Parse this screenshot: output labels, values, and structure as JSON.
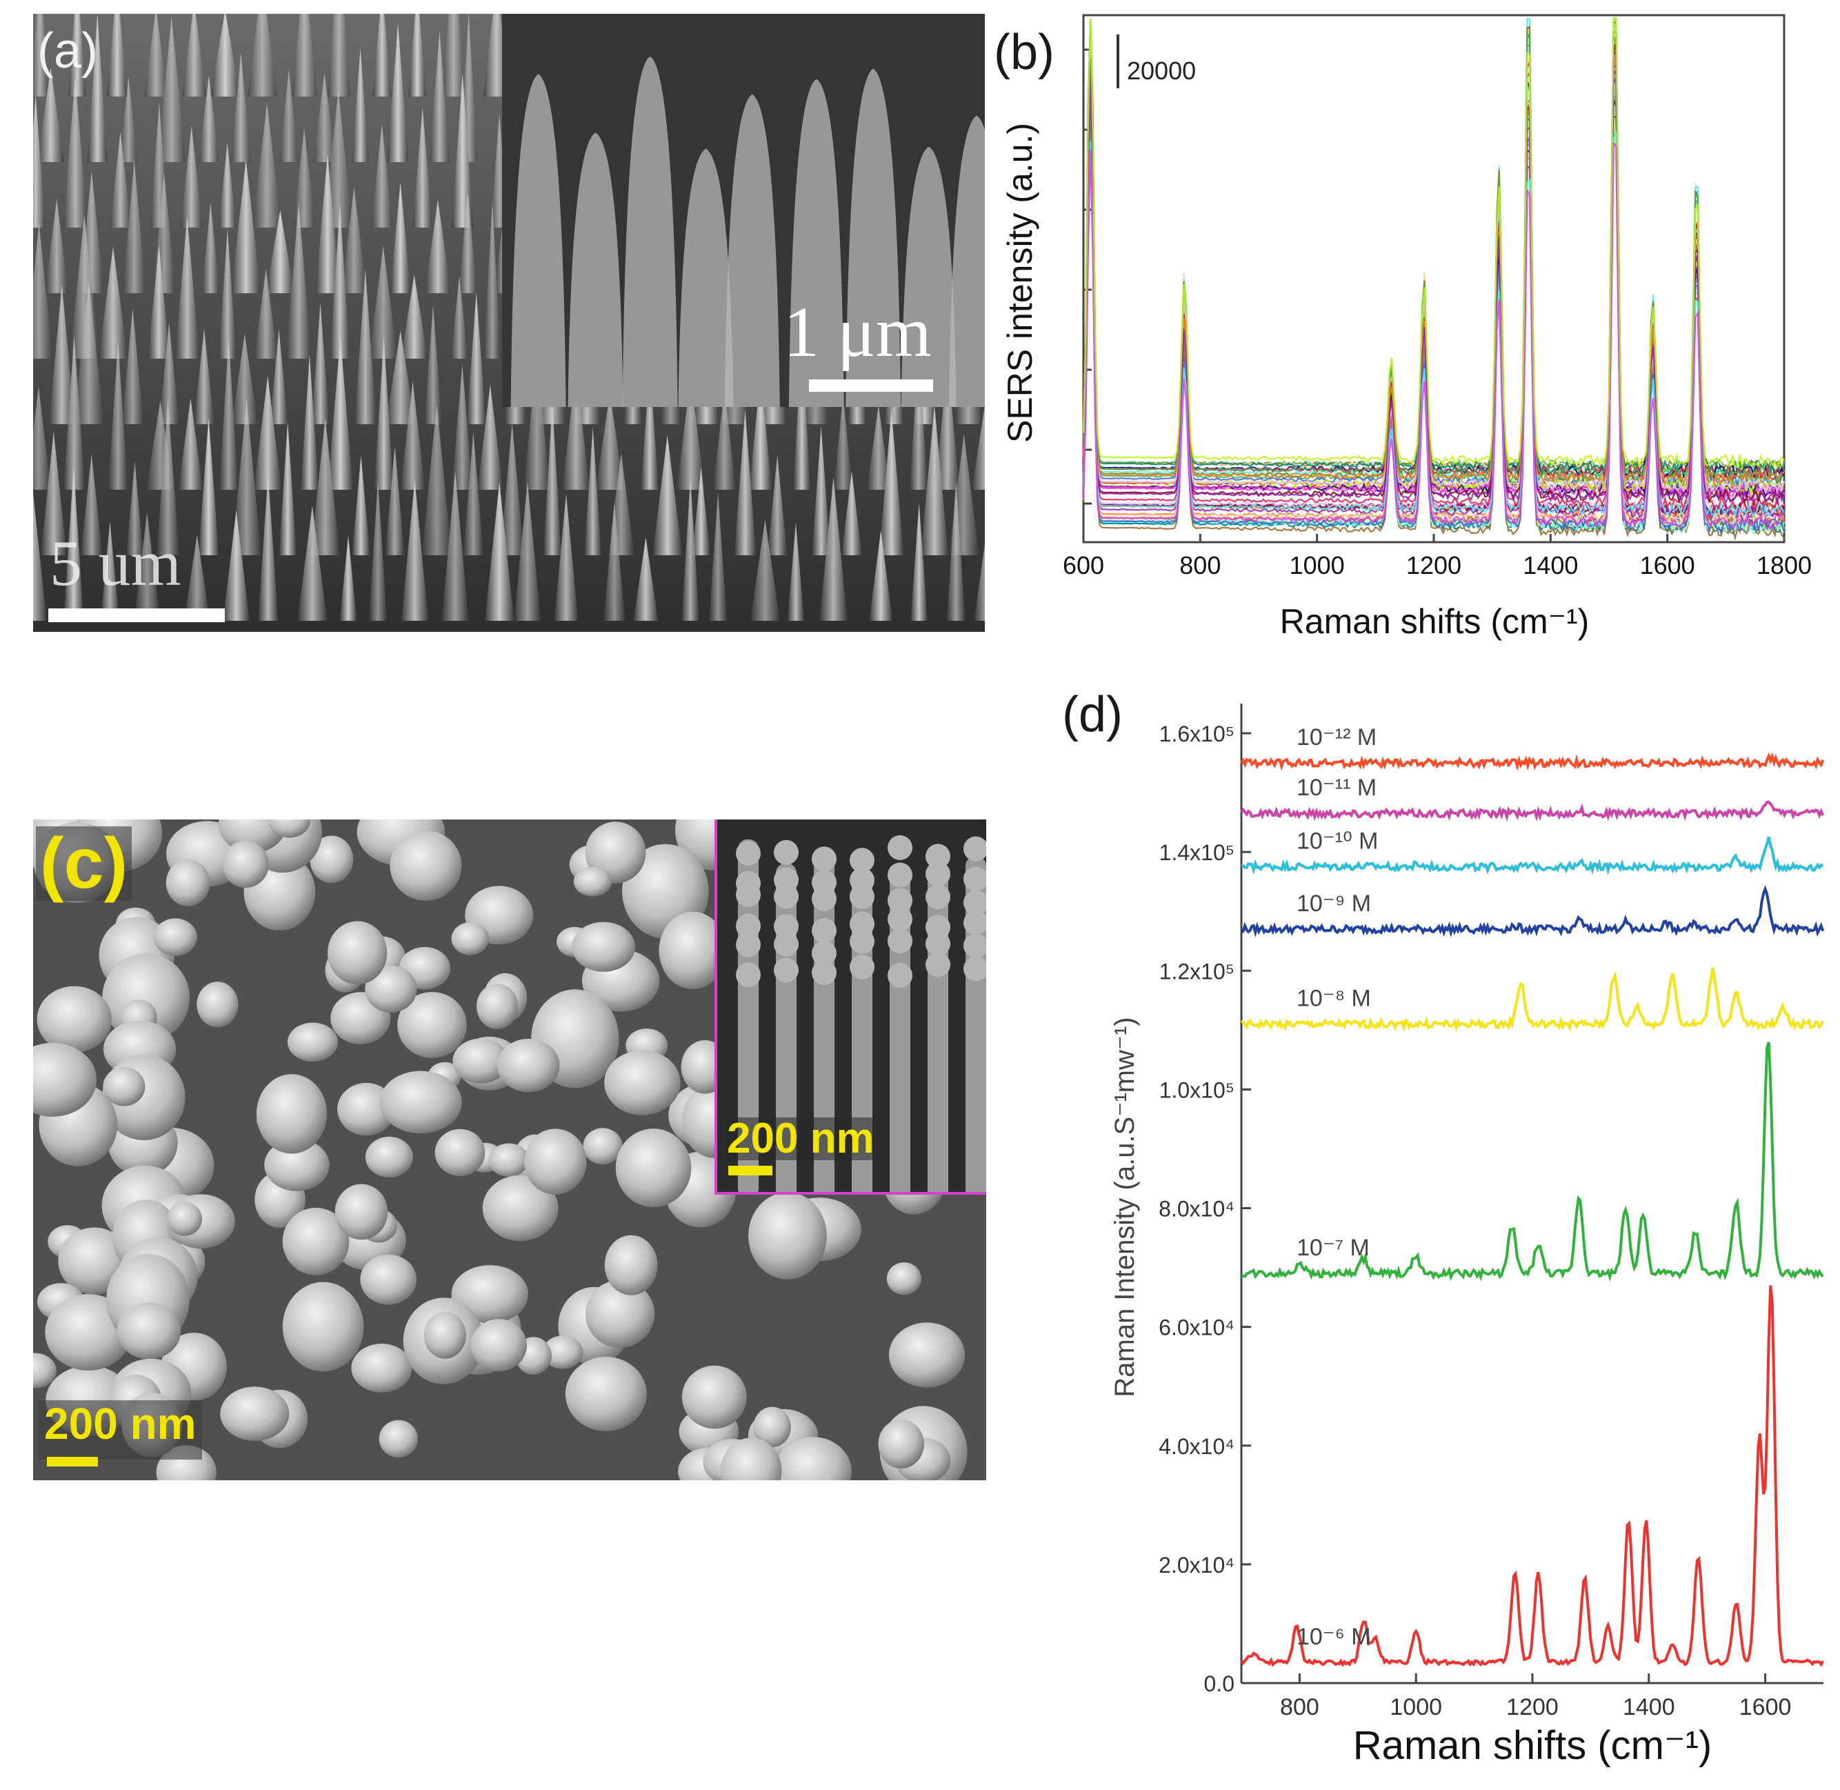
{
  "panels": {
    "a": {
      "letter": "(a)",
      "inset_scale": "1 μm",
      "main_scale": "5 um"
    },
    "b": {
      "letter": "(b)",
      "scale_label": "20000",
      "ylabel": "SERS intensity (a.u.)",
      "xlabel": "Raman shifts (cm⁻¹)",
      "xticks": [
        "600",
        "800",
        "1000",
        "1200",
        "1400",
        "1600",
        "1800"
      ]
    },
    "c": {
      "letter": "(c)",
      "main_scale": "200 nm",
      "inset_scale": "200 nm",
      "accent": "#f2e500",
      "inset_border": "#d63fd0"
    },
    "d": {
      "letter": "(d)",
      "ylabel": "Raman Intensity (a.u.S⁻¹mw⁻¹)",
      "xlabel": "Raman shifts (cm⁻¹)",
      "xticks": [
        "800",
        "1000",
        "1200",
        "1400",
        "1600"
      ],
      "yticks": [
        "0.0",
        "2.0x10⁴",
        "4.0x10⁴",
        "6.0x10⁴",
        "8.0x10⁴",
        "1.0x10⁵",
        "1.2x10⁵",
        "1.4x10⁵",
        "1.6x10⁵"
      ]
    }
  },
  "chart_data": [
    {
      "type": "line",
      "panel": "b",
      "xlabel": "Raman shifts (cm⁻¹)",
      "ylabel": "SERS intensity (a.u.)",
      "xlim": [
        600,
        1800
      ],
      "scale_bar": 20000,
      "y_units": "a.u. (stacked, ~40 spectra overlaid)",
      "peaks_x": [
        612,
        773,
        1127,
        1183,
        1311,
        1362,
        1510,
        1575,
        1650
      ],
      "peak_heights_relative": [
        0.9,
        0.35,
        0.2,
        0.35,
        0.55,
        0.87,
        1.0,
        0.32,
        0.55
      ],
      "series_count": 40,
      "series_colors": [
        "#e6194b",
        "#3cb44b",
        "#4363d8",
        "#f58231",
        "#911eb4",
        "#46f0f0",
        "#f032e6",
        "#bcf60c",
        "#008080",
        "#9a6324",
        "#800000",
        "#808000",
        "#000075",
        "#e6beff",
        "#aaffc3",
        "#ffd8b1"
      ]
    },
    {
      "type": "line",
      "panel": "d",
      "xlabel": "Raman shifts (cm⁻¹)",
      "ylabel": "Raman Intensity (a.u.S⁻¹mw⁻¹)",
      "xlim": [
        700,
        1700
      ],
      "ylim": [
        0,
        165000
      ],
      "series": [
        {
          "name": "10⁻¹² M",
          "color": "#ff4a26",
          "baseline": 155000,
          "peaks": [
            [
              1610,
              800
            ]
          ]
        },
        {
          "name": "10⁻¹¹ M",
          "color": "#cc44a8",
          "baseline": 146500,
          "peaks": [
            [
              1605,
              2500
            ],
            [
              1280,
              500
            ]
          ]
        },
        {
          "name": "10⁻¹⁰ M",
          "color": "#2bbfdc",
          "baseline": 137500,
          "peaks": [
            [
              1605,
              4500
            ],
            [
              1550,
              1500
            ],
            [
              1280,
              800
            ],
            [
              1000,
              400
            ]
          ]
        },
        {
          "name": "10⁻⁹ M",
          "color": "#2141a3",
          "baseline": 127000,
          "peaks": [
            [
              1600,
              6500
            ],
            [
              1550,
              2000
            ],
            [
              1280,
              1500
            ],
            [
              1360,
              1200
            ],
            [
              1430,
              1000
            ],
            [
              1480,
              900
            ],
            [
              1170,
              600
            ]
          ]
        },
        {
          "name": "10⁻⁸ M",
          "color": "#f4e418",
          "baseline": 111000,
          "peaks": [
            [
              1180,
              7000
            ],
            [
              1340,
              8000
            ],
            [
              1440,
              8500
            ],
            [
              1510,
              9000
            ],
            [
              1380,
              3000
            ],
            [
              1550,
              5000
            ],
            [
              1630,
              3000
            ]
          ]
        },
        {
          "name": "10⁻⁷ M",
          "color": "#31b23a",
          "baseline": 69000,
          "peaks": [
            [
              1605,
              40000
            ],
            [
              1550,
              12000
            ],
            [
              1480,
              7000
            ],
            [
              1390,
              10000
            ],
            [
              1360,
              11000
            ],
            [
              1280,
              13000
            ],
            [
              1210,
              5000
            ],
            [
              1165,
              8000
            ],
            [
              1000,
              3000
            ],
            [
              910,
              2500
            ],
            [
              800,
              2000
            ]
          ]
        },
        {
          "name": "10⁻⁶ M",
          "color": "#f0322c",
          "baseline": 3500,
          "peaks": [
            [
              1610,
              64000
            ],
            [
              1590,
              38000
            ],
            [
              1550,
              10000
            ],
            [
              1485,
              18000
            ],
            [
              1440,
              3000
            ],
            [
              1395,
              24000
            ],
            [
              1365,
              24000
            ],
            [
              1330,
              6000
            ],
            [
              1290,
              14000
            ],
            [
              1210,
              15000
            ],
            [
              1170,
              15000
            ],
            [
              1000,
              5000
            ],
            [
              930,
              4000
            ],
            [
              910,
              7000
            ],
            [
              795,
              6000
            ],
            [
              720,
              1500
            ]
          ]
        }
      ]
    }
  ]
}
